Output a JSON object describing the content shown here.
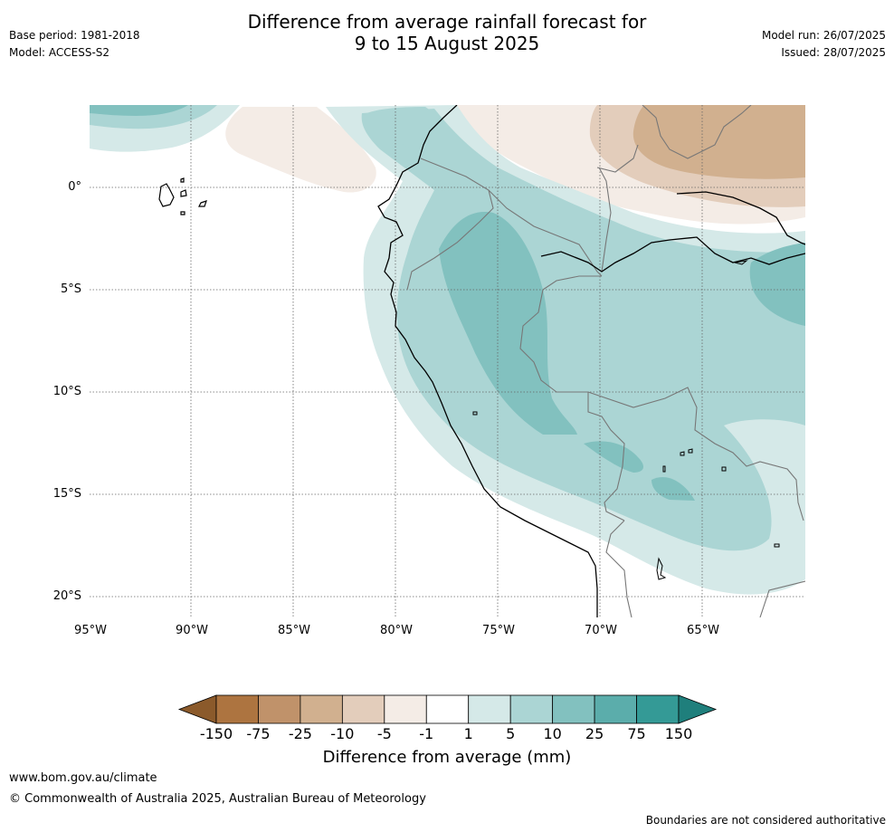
{
  "meta": {
    "base_period": "Base period: 1981-2018",
    "model": "Model: ACCESS-S2",
    "model_run": "Model run: 26/07/2025",
    "issued": "Issued: 28/07/2025"
  },
  "title": {
    "line1": "Difference from average rainfall forecast for",
    "line2": "9 to 15 August 2025"
  },
  "map": {
    "region": "Western South America",
    "lat_labels": [
      "0°",
      "5°S",
      "10°S",
      "15°S",
      "20°S"
    ],
    "lon_labels": [
      "95°W",
      "90°W",
      "85°W",
      "80°W",
      "75°W",
      "70°W",
      "65°W"
    ],
    "gridlines": true
  },
  "colorbar": {
    "ticks": [
      "-150",
      "-75",
      "-25",
      "-10",
      "-5",
      "-1",
      "1",
      "5",
      "10",
      "25",
      "75",
      "150"
    ],
    "colors": [
      "#8b5a2b",
      "#ad7440",
      "#c0926a",
      "#d1b08f",
      "#e3cdbb",
      "#f4ece6",
      "#ffffff",
      "#d5e9e8",
      "#abd5d4",
      "#82c1bf",
      "#5badab",
      "#349a96",
      "#1f7f7c"
    ],
    "label": "Difference from average (mm)"
  },
  "footer": {
    "url": "www.bom.gov.au/climate",
    "copyright": "© Commonwealth of Australia 2025, Australian Bureau of Meteorology",
    "note": "Boundaries are not considered authoritative"
  }
}
